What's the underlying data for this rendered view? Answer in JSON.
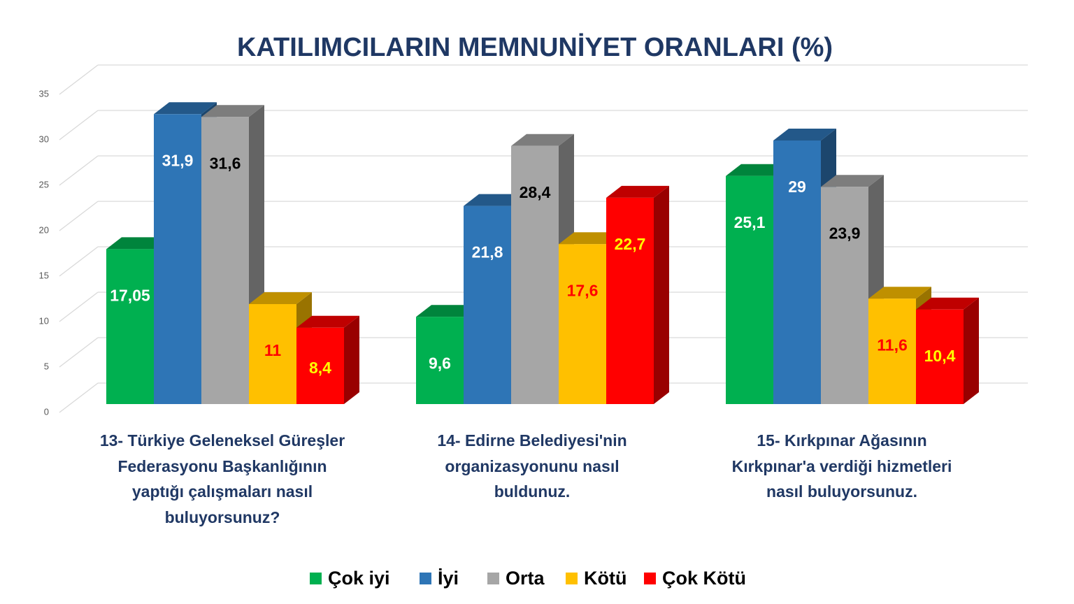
{
  "chart_data": {
    "type": "bar3d",
    "title": "KATILIMCILARIN MEMNUNİYET ORANLARI (%)",
    "categories": [
      "13- Türkiye Geleneksel Güreşler Federasyonu Başkanlığının yaptığı çalışmaları nasıl buluyorsunuz?",
      "14- Edirne Belediyesi'nin organizasyonunu nasıl buldunuz.",
      "15- Kırkpınar Ağasının Kırkpınar'a verdiği hizmetleri nasıl buluyorsunuz."
    ],
    "series": [
      {
        "name": "Çok iyi",
        "color": "#00b050",
        "label_color": "#ffffff",
        "values": [
          17.05,
          9.6,
          25.1
        ],
        "value_labels": [
          "17,05",
          "9,6",
          "25,1"
        ]
      },
      {
        "name": "İyi",
        "color": "#2e75b6",
        "label_color": "#ffffff",
        "values": [
          31.9,
          21.8,
          29
        ],
        "value_labels": [
          "31,9",
          "21,8",
          "29"
        ]
      },
      {
        "name": "Orta",
        "color": "#a6a6a6",
        "label_color": "#000000",
        "values": [
          31.6,
          28.4,
          23.9
        ],
        "value_labels": [
          "31,6",
          "28,4",
          "23,9"
        ]
      },
      {
        "name": "Kötü",
        "color": "#ffc000",
        "label_color": "#ff0000",
        "values": [
          11,
          17.6,
          11.6
        ],
        "value_labels": [
          "11",
          "17,6",
          "11,6"
        ]
      },
      {
        "name": "Çok Kötü",
        "color": "#ff0000",
        "label_color": "#ffff00",
        "values": [
          8.4,
          22.7,
          10.4
        ],
        "value_labels": [
          "8,4",
          "22,7",
          "10,4"
        ]
      }
    ],
    "ylim": [
      0,
      35
    ],
    "yticks": [
      0,
      5,
      10,
      15,
      20,
      25,
      30,
      35
    ],
    "grid": true,
    "legend": "bottom"
  }
}
